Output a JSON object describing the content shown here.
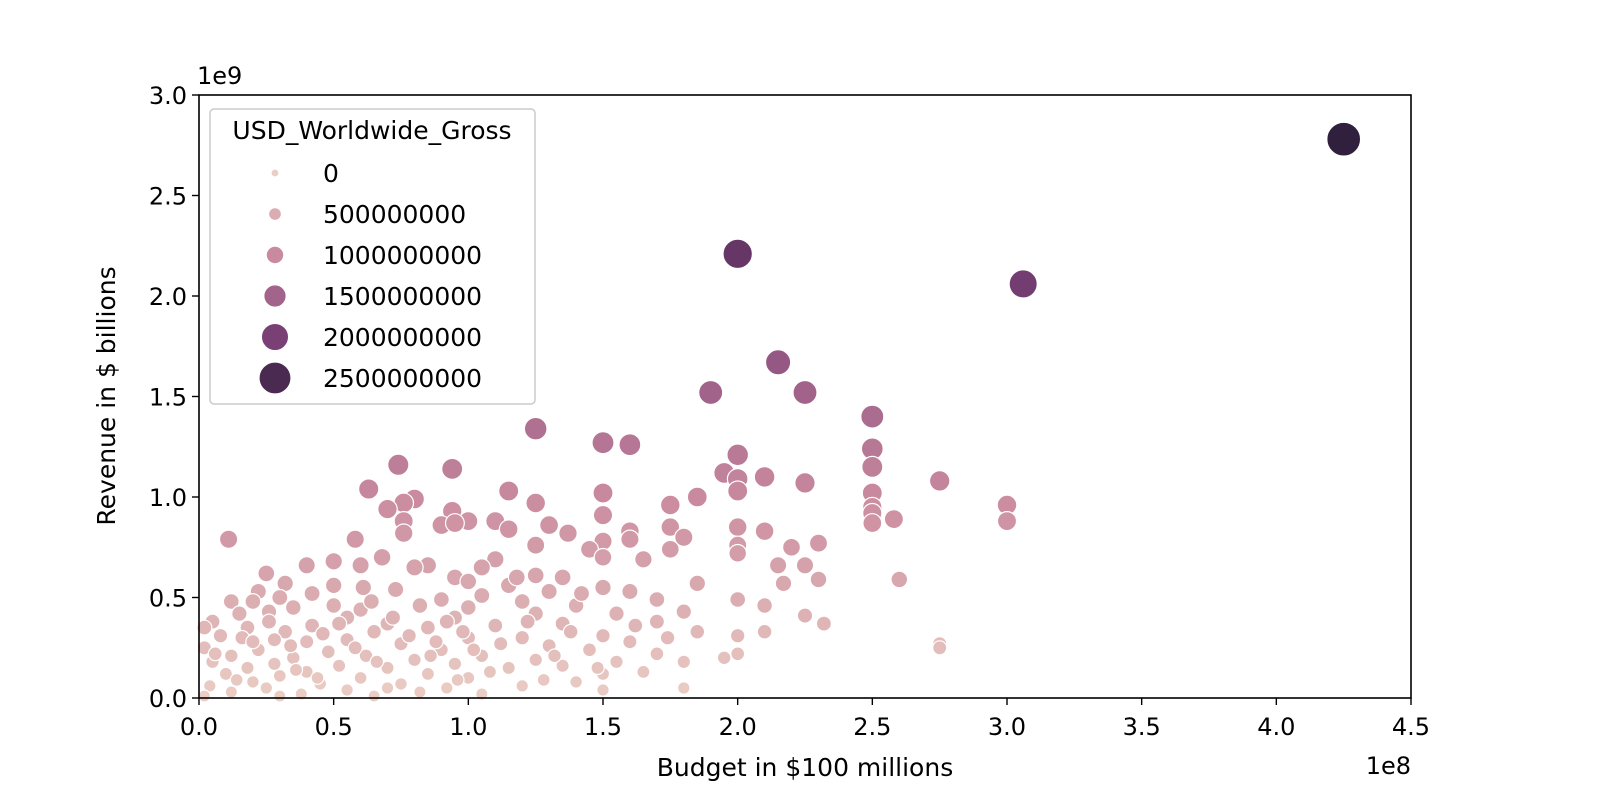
{
  "chart_data": {
    "type": "scatter",
    "title": "",
    "xlabel": "Budget in $100 millions",
    "ylabel": "Revenue in $ billions",
    "x_offset_text": "1e8",
    "y_offset_text": "1e9",
    "xlim": [
      0,
      4.5
    ],
    "ylim": [
      0,
      3.0
    ],
    "x_ticks": [
      "0.0",
      "0.5",
      "1.0",
      "1.5",
      "2.0",
      "2.5",
      "3.0",
      "3.5",
      "4.0",
      "4.5"
    ],
    "y_ticks": [
      "0.0",
      "0.5",
      "1.0",
      "1.5",
      "2.0",
      "2.5",
      "3.0"
    ],
    "grid": false,
    "hue_and_size": "USD_Worldwide_Gross",
    "legend": {
      "title": "USD_Worldwide_Gross",
      "placement": "upper-left",
      "entries": [
        {
          "label": "0",
          "value": 0
        },
        {
          "label": "500000000",
          "value": 500000000
        },
        {
          "label": "1000000000",
          "value": 1000000000
        },
        {
          "label": "1500000000",
          "value": 1500000000
        },
        {
          "label": "2000000000",
          "value": 2000000000
        },
        {
          "label": "2500000000",
          "value": 2500000000
        }
      ]
    },
    "points": [
      [
        4.25,
        2.78
      ],
      [
        2.0,
        2.21
      ],
      [
        3.06,
        2.06
      ],
      [
        2.15,
        1.67
      ],
      [
        1.9,
        1.52
      ],
      [
        2.25,
        1.52
      ],
      [
        2.5,
        1.4
      ],
      [
        1.25,
        1.34
      ],
      [
        1.5,
        1.27
      ],
      [
        1.6,
        1.26
      ],
      [
        2.5,
        1.24
      ],
      [
        2.0,
        1.21
      ],
      [
        0.74,
        1.16
      ],
      [
        0.94,
        1.14
      ],
      [
        2.5,
        1.15
      ],
      [
        1.95,
        1.12
      ],
      [
        2.1,
        1.1
      ],
      [
        2.0,
        1.09
      ],
      [
        2.75,
        1.08
      ],
      [
        2.25,
        1.07
      ],
      [
        0.63,
        1.04
      ],
      [
        2.0,
        1.03
      ],
      [
        1.15,
        1.03
      ],
      [
        2.5,
        1.02
      ],
      [
        1.5,
        1.02
      ],
      [
        1.85,
        1.0
      ],
      [
        0.8,
        0.99
      ],
      [
        0.76,
        0.97
      ],
      [
        1.25,
        0.97
      ],
      [
        1.75,
        0.96
      ],
      [
        3.0,
        0.96
      ],
      [
        2.5,
        0.95
      ],
      [
        0.7,
        0.94
      ],
      [
        0.94,
        0.93
      ],
      [
        2.5,
        0.92
      ],
      [
        1.5,
        0.91
      ],
      [
        2.58,
        0.89
      ],
      [
        1.1,
        0.88
      ],
      [
        3.0,
        0.88
      ],
      [
        0.76,
        0.88
      ],
      [
        0.9,
        0.86
      ],
      [
        2.5,
        0.87
      ],
      [
        1.0,
        0.88
      ],
      [
        0.95,
        0.87
      ],
      [
        1.3,
        0.86
      ],
      [
        2.0,
        0.85
      ],
      [
        1.15,
        0.84
      ],
      [
        1.6,
        0.83
      ],
      [
        2.1,
        0.83
      ],
      [
        0.76,
        0.82
      ],
      [
        1.37,
        0.82
      ],
      [
        1.75,
        0.85
      ],
      [
        0.11,
        0.79
      ],
      [
        0.58,
        0.79
      ],
      [
        1.8,
        0.8
      ],
      [
        1.6,
        0.79
      ],
      [
        1.5,
        0.78
      ],
      [
        2.3,
        0.77
      ],
      [
        2.0,
        0.76
      ],
      [
        1.25,
        0.76
      ],
      [
        2.2,
        0.75
      ],
      [
        1.45,
        0.74
      ],
      [
        1.75,
        0.74
      ],
      [
        2.0,
        0.72
      ],
      [
        1.1,
        0.69
      ],
      [
        0.68,
        0.7
      ],
      [
        1.5,
        0.7
      ],
      [
        1.65,
        0.69
      ],
      [
        0.6,
        0.66
      ],
      [
        2.15,
        0.66
      ],
      [
        2.25,
        0.66
      ],
      [
        0.5,
        0.68
      ],
      [
        1.05,
        0.65
      ],
      [
        0.85,
        0.66
      ],
      [
        1.25,
        0.61
      ],
      [
        0.4,
        0.66
      ],
      [
        0.8,
        0.65
      ],
      [
        0.25,
        0.62
      ],
      [
        1.35,
        0.6
      ],
      [
        0.95,
        0.6
      ],
      [
        2.6,
        0.59
      ],
      [
        1.85,
        0.57
      ],
      [
        2.3,
        0.59
      ],
      [
        1.15,
        0.56
      ],
      [
        1.0,
        0.58
      ],
      [
        0.32,
        0.57
      ],
      [
        2.17,
        0.57
      ],
      [
        0.5,
        0.56
      ],
      [
        1.5,
        0.55
      ],
      [
        0.22,
        0.53
      ],
      [
        0.61,
        0.55
      ],
      [
        1.3,
        0.53
      ],
      [
        1.6,
        0.53
      ],
      [
        0.42,
        0.52
      ],
      [
        0.73,
        0.54
      ],
      [
        1.05,
        0.51
      ],
      [
        2.0,
        0.49
      ],
      [
        1.7,
        0.49
      ],
      [
        0.2,
        0.48
      ],
      [
        0.12,
        0.48
      ],
      [
        0.3,
        0.5
      ],
      [
        0.9,
        0.49
      ],
      [
        1.2,
        0.48
      ],
      [
        1.4,
        0.46
      ],
      [
        0.5,
        0.46
      ],
      [
        0.82,
        0.46
      ],
      [
        2.1,
        0.46
      ],
      [
        0.35,
        0.45
      ],
      [
        1.8,
        0.43
      ],
      [
        1.0,
        0.45
      ],
      [
        0.6,
        0.44
      ],
      [
        0.26,
        0.43
      ],
      [
        0.15,
        0.42
      ],
      [
        1.55,
        0.42
      ],
      [
        1.25,
        0.42
      ],
      [
        2.25,
        0.41
      ],
      [
        0.05,
        0.38
      ],
      [
        0.55,
        0.4
      ],
      [
        0.95,
        0.4
      ],
      [
        0.7,
        0.37
      ],
      [
        1.7,
        0.38
      ],
      [
        1.35,
        0.37
      ],
      [
        2.32,
        0.37
      ],
      [
        0.42,
        0.36
      ],
      [
        0.18,
        0.35
      ],
      [
        1.1,
        0.36
      ],
      [
        0.32,
        0.33
      ],
      [
        0.85,
        0.35
      ],
      [
        1.85,
        0.33
      ],
      [
        2.1,
        0.33
      ],
      [
        0.65,
        0.33
      ],
      [
        1.5,
        0.31
      ],
      [
        0.08,
        0.31
      ],
      [
        1.0,
        0.3
      ],
      [
        0.28,
        0.29
      ],
      [
        1.2,
        0.3
      ],
      [
        0.55,
        0.29
      ],
      [
        2.0,
        0.31
      ],
      [
        0.4,
        0.28
      ],
      [
        1.6,
        0.28
      ],
      [
        2.75,
        0.27
      ],
      [
        0.75,
        0.27
      ],
      [
        1.3,
        0.26
      ],
      [
        2.75,
        0.25
      ],
      [
        0.02,
        0.25
      ],
      [
        0.22,
        0.24
      ],
      [
        0.9,
        0.24
      ],
      [
        1.45,
        0.24
      ],
      [
        0.48,
        0.23
      ],
      [
        1.7,
        0.22
      ],
      [
        2.0,
        0.22
      ],
      [
        0.12,
        0.21
      ],
      [
        0.62,
        0.21
      ],
      [
        1.05,
        0.21
      ],
      [
        1.95,
        0.2
      ],
      [
        0.35,
        0.2
      ],
      [
        0.8,
        0.19
      ],
      [
        1.25,
        0.19
      ],
      [
        1.55,
        0.18
      ],
      [
        0.05,
        0.18
      ],
      [
        0.28,
        0.17
      ],
      [
        0.95,
        0.17
      ],
      [
        1.8,
        0.18
      ],
      [
        0.52,
        0.16
      ],
      [
        1.35,
        0.16
      ],
      [
        0.18,
        0.15
      ],
      [
        0.7,
        0.15
      ],
      [
        1.15,
        0.15
      ],
      [
        0.4,
        0.13
      ],
      [
        1.65,
        0.13
      ],
      [
        0.1,
        0.12
      ],
      [
        0.85,
        0.12
      ],
      [
        1.5,
        0.12
      ],
      [
        0.3,
        0.11
      ],
      [
        1.0,
        0.1
      ],
      [
        0.6,
        0.1
      ],
      [
        1.28,
        0.09
      ],
      [
        0.2,
        0.08
      ],
      [
        1.4,
        0.08
      ],
      [
        0.75,
        0.07
      ],
      [
        0.45,
        0.07
      ],
      [
        0.04,
        0.06
      ],
      [
        1.2,
        0.06
      ],
      [
        0.92,
        0.05
      ],
      [
        0.25,
        0.05
      ],
      [
        1.8,
        0.05
      ],
      [
        0.55,
        0.04
      ],
      [
        1.5,
        0.04
      ],
      [
        0.12,
        0.03
      ],
      [
        0.82,
        0.03
      ],
      [
        0.38,
        0.02
      ],
      [
        1.05,
        0.02
      ],
      [
        0.02,
        0.01
      ],
      [
        0.65,
        0.01
      ],
      [
        0.3,
        0.01
      ],
      [
        0.16,
        0.3
      ],
      [
        0.06,
        0.22
      ],
      [
        0.36,
        0.14
      ],
      [
        0.58,
        0.25
      ],
      [
        0.88,
        0.28
      ],
      [
        1.12,
        0.27
      ],
      [
        1.38,
        0.33
      ],
      [
        0.46,
        0.32
      ],
      [
        0.72,
        0.4
      ],
      [
        1.22,
        0.38
      ],
      [
        0.98,
        0.33
      ],
      [
        0.26,
        0.38
      ],
      [
        0.66,
        0.18
      ],
      [
        1.08,
        0.13
      ],
      [
        0.14,
        0.09
      ],
      [
        0.96,
        0.09
      ],
      [
        1.62,
        0.36
      ],
      [
        1.42,
        0.52
      ],
      [
        1.18,
        0.6
      ],
      [
        0.52,
        0.37
      ],
      [
        0.78,
        0.31
      ],
      [
        0.02,
        0.35
      ],
      [
        0.44,
        0.1
      ],
      [
        0.86,
        0.21
      ],
      [
        1.32,
        0.21
      ],
      [
        1.74,
        0.3
      ],
      [
        0.34,
        0.26
      ],
      [
        0.92,
        0.38
      ],
      [
        0.64,
        0.48
      ],
      [
        0.2,
        0.28
      ],
      [
        1.02,
        0.24
      ],
      [
        1.48,
        0.15
      ],
      [
        0.7,
        0.05
      ]
    ]
  }
}
